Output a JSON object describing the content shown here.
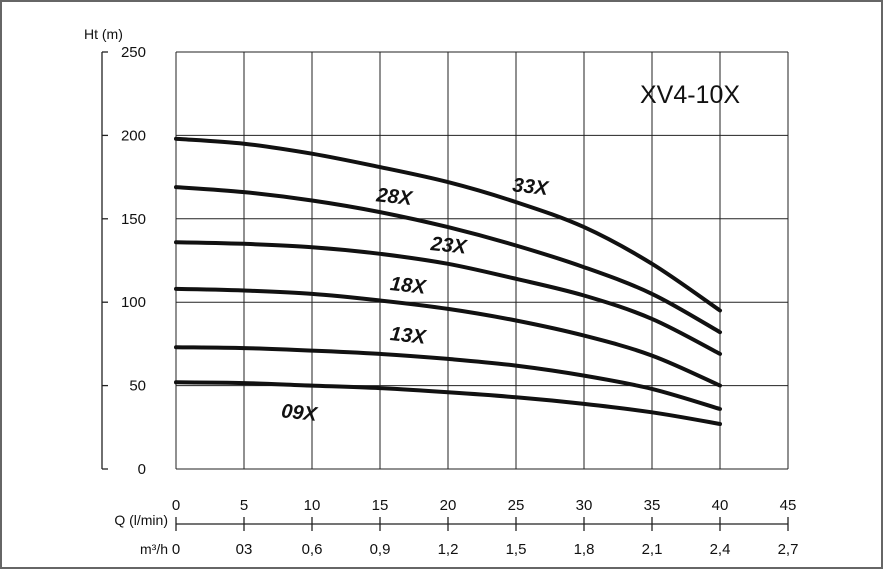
{
  "chart_data": {
    "type": "line",
    "title": "XV4-10X",
    "ylabel": "Ht (m)",
    "xlabel": "Q (l/min)",
    "x2label": "m³/h",
    "xlim": [
      0,
      45
    ],
    "ylim": [
      0,
      250
    ],
    "x_ticks": [
      "0",
      "5",
      "10",
      "15",
      "20",
      "25",
      "30",
      "35",
      "40",
      "45"
    ],
    "x2_ticks": [
      "0",
      "03",
      "0,6",
      "0,9",
      "1,2",
      "1,5",
      "1,8",
      "2,1",
      "2,4",
      "2,7"
    ],
    "y_ticks": [
      "0",
      "50",
      "100",
      "150",
      "200",
      "250"
    ],
    "grid": true,
    "series": [
      {
        "name": "09X",
        "x": [
          0,
          5,
          10,
          15,
          20,
          25,
          30,
          35,
          40
        ],
        "y": [
          52,
          51.5,
          50,
          48.5,
          46,
          43,
          39,
          34,
          27
        ]
      },
      {
        "name": "13X",
        "x": [
          0,
          5,
          10,
          15,
          20,
          25,
          30,
          35,
          40
        ],
        "y": [
          73,
          72.5,
          71,
          69,
          66,
          62,
          56,
          48,
          36
        ]
      },
      {
        "name": "18X",
        "x": [
          0,
          5,
          10,
          15,
          20,
          25,
          30,
          35,
          40
        ],
        "y": [
          108,
          107,
          105,
          101,
          96,
          89,
          80,
          68,
          50
        ]
      },
      {
        "name": "23X",
        "x": [
          0,
          5,
          10,
          15,
          20,
          25,
          30,
          35,
          40
        ],
        "y": [
          136,
          135,
          133,
          129,
          123,
          114,
          104,
          90,
          69
        ]
      },
      {
        "name": "28X",
        "x": [
          0,
          5,
          10,
          15,
          20,
          25,
          30,
          35,
          40
        ],
        "y": [
          169,
          166,
          161,
          154,
          145,
          134,
          121,
          105,
          82
        ]
      },
      {
        "name": "33X",
        "x": [
          0,
          5,
          10,
          15,
          20,
          25,
          30,
          35,
          40
        ],
        "y": [
          198,
          195,
          189,
          181,
          172,
          160,
          145,
          123,
          95
        ]
      }
    ]
  }
}
